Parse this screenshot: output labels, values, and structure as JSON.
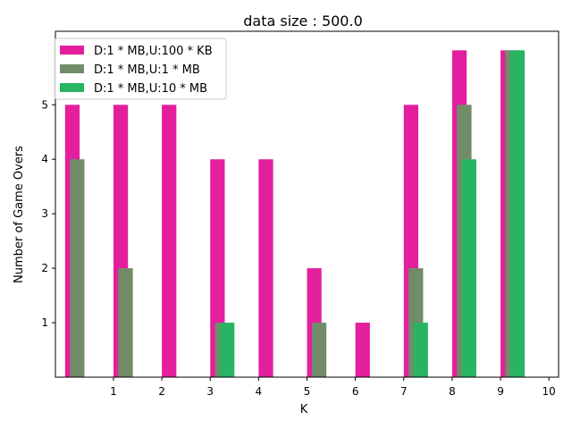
{
  "chart_data": {
    "type": "bar",
    "title": "data size : 500.0",
    "xlabel": "K",
    "ylabel": "Number of Game Overs",
    "categories": [
      "1",
      "2",
      "3",
      "4",
      "5",
      "6",
      "7",
      "8",
      "9",
      "10"
    ],
    "yticks": [
      "1",
      "2",
      "3",
      "4",
      "5"
    ],
    "ylim": [
      0,
      6.35
    ],
    "xlim": [
      -0.2,
      10.2
    ],
    "legend_position": "top-left",
    "series": [
      {
        "name": "D:1 * MB,U:100 * KB",
        "color": "#e31f9e",
        "values": [
          5,
          5,
          5,
          4,
          4,
          2,
          1,
          5,
          6,
          6
        ]
      },
      {
        "name": "D:1 * MB,U:1 * MB",
        "color": "#728c69",
        "values": [
          4,
          2,
          0,
          1,
          0,
          1,
          0,
          2,
          5,
          6
        ]
      },
      {
        "name": "D:1 * MB,U:10 * MB",
        "color": "#28b463",
        "values": [
          0,
          0,
          0,
          1,
          0,
          0,
          0,
          1,
          4,
          6
        ]
      }
    ]
  }
}
